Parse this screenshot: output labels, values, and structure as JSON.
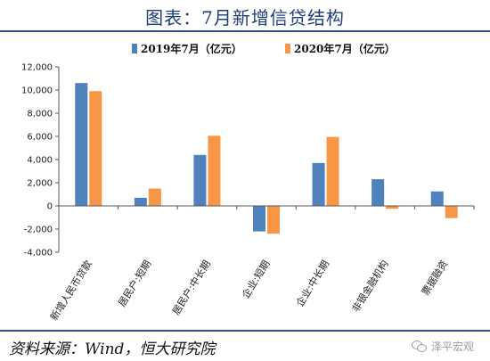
{
  "header": {
    "title": "图表：7月新增信贷结构"
  },
  "footer": {
    "source": "资料来源：Wind，恒大研究院",
    "watermark": "泽平宏观"
  },
  "colors": {
    "series_2019": "#4f81bd",
    "series_2020": "#f79646",
    "rule": "#2b4f8c"
  },
  "chart_data": {
    "type": "bar",
    "categories": [
      "新增人民币贷款",
      "居民户:短期",
      "居民户:中长期",
      "企业:短期",
      "企业:中长期",
      "非银金融机构",
      "票据融资"
    ],
    "series": [
      {
        "name": "2019年7月（亿元）",
        "values": [
          10600,
          700,
          4400,
          -2200,
          3700,
          2300,
          1250
        ]
      },
      {
        "name": "2020年7月（亿元）",
        "values": [
          9900,
          1500,
          6050,
          -2400,
          5950,
          -250,
          -1050
        ]
      }
    ],
    "yticks": [
      "12,000",
      "10,000",
      "8,000",
      "6,000",
      "4,000",
      "2,000",
      "0",
      "-2,000",
      "-4,000"
    ],
    "ylim": [
      -4000,
      12000
    ],
    "legend_position": "top",
    "grid": false
  }
}
